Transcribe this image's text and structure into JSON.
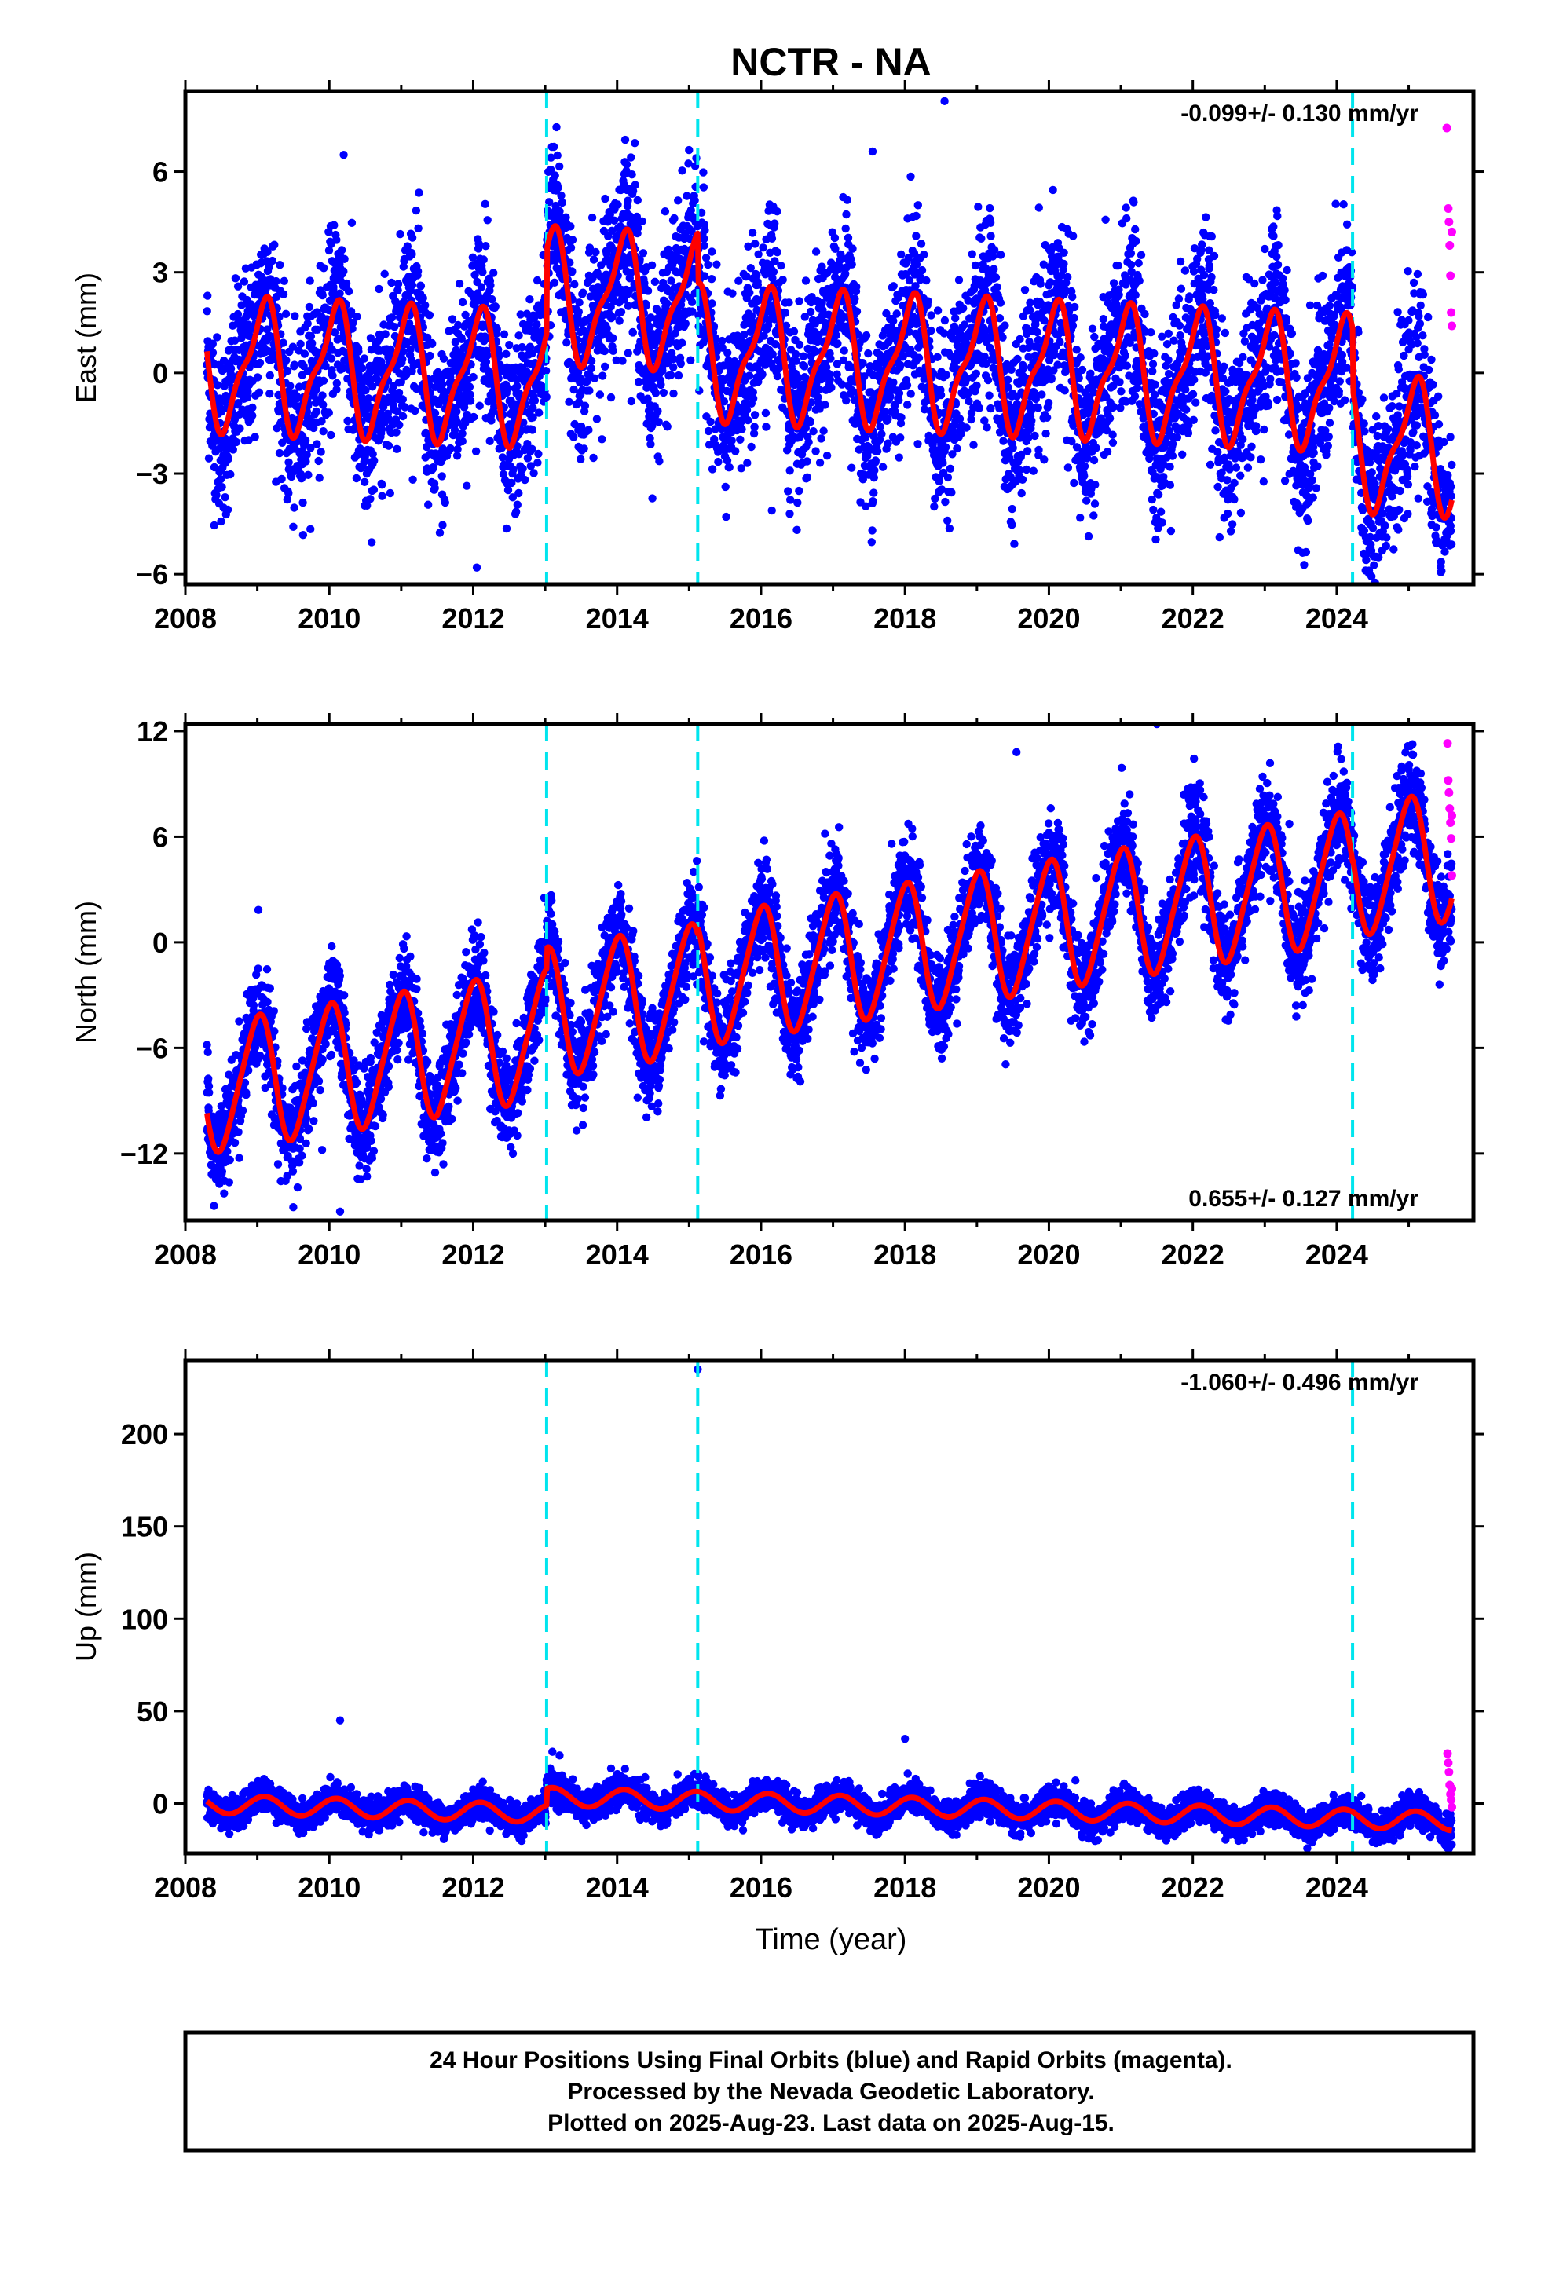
{
  "title": "NCTR - NA",
  "xlabel": "Time (year)",
  "footer": {
    "line1": "24 Hour Positions Using Final Orbits (blue) and Rapid Orbits (magenta).",
    "line2": "Processed by the Nevada Geodetic Laboratory.",
    "line3": "Plotted on 2025-Aug-23. Last data on 2025-Aug-15."
  },
  "colors": {
    "final": "#0000ff",
    "rapid": "#ff00ff",
    "model": "#ff0000",
    "steps": "#00e5ee"
  },
  "chart_data": [
    {
      "type": "scatter",
      "name": "East",
      "ylabel": "East (mm)",
      "rate": "-0.099+/- 0.130 mm/yr",
      "xlim": [
        2008,
        2025.9
      ],
      "ylim": [
        -6.3,
        8.4
      ],
      "yticks": [
        -6,
        -3,
        0,
        3,
        6
      ],
      "xticks": [
        2008,
        2010,
        2012,
        2014,
        2016,
        2018,
        2020,
        2022,
        2024
      ],
      "steps": [
        2013.02,
        2015.12,
        2024.22
      ],
      "model": {
        "offset": 0.3,
        "trend": -0.099,
        "annual": 1.8,
        "phase": 0.57,
        "semi": 0.6,
        "jumps": [
          {
            "t": 2013.02,
            "d": 2.5
          },
          {
            "t": 2015.12,
            "d": -1.5
          },
          {
            "t": 2024.22,
            "d": -1.8
          }
        ]
      },
      "scatter_sd": 1.3,
      "outliers": [
        {
          "x": 2010.2,
          "y": 6.5
        },
        {
          "x": 2012.05,
          "y": -5.8
        },
        {
          "x": 2015.1,
          "y": 6.4
        },
        {
          "x": 2018.55,
          "y": 8.1
        },
        {
          "x": 2016.15,
          "y": -4.1
        },
        {
          "x": 2017.55,
          "y": 6.6
        }
      ],
      "rapid": [
        {
          "x": 2025.53,
          "y": 7.3
        },
        {
          "x": 2025.55,
          "y": 4.9
        },
        {
          "x": 2025.56,
          "y": 4.5
        },
        {
          "x": 2025.57,
          "y": 3.8
        },
        {
          "x": 2025.58,
          "y": 2.9
        },
        {
          "x": 2025.59,
          "y": 1.8
        },
        {
          "x": 2025.6,
          "y": 1.4
        },
        {
          "x": 2025.6,
          "y": 4.2
        }
      ]
    },
    {
      "type": "scatter",
      "name": "North",
      "ylabel": "North (mm)",
      "rate": "0.655+/- 0.127 mm/yr",
      "xlim": [
        2008,
        2025.9
      ],
      "ylim": [
        -15.8,
        12.4
      ],
      "yticks": [
        -12,
        -6,
        0,
        6,
        12
      ],
      "xticks": [
        2008,
        2010,
        2012,
        2014,
        2016,
        2018,
        2020,
        2022,
        2024
      ],
      "steps": [
        2013.02,
        2015.12,
        2024.22
      ],
      "model": {
        "offset": -8.5,
        "trend": 0.655,
        "annual": 3.6,
        "phase": 0.5,
        "semi": 0.5,
        "jumps": [
          {
            "t": 2013.02,
            "d": 1.2
          },
          {
            "t": 2015.12,
            "d": 0.4
          },
          {
            "t": 2024.22,
            "d": 0.3
          }
        ]
      },
      "scatter_sd": 1.4,
      "outliers": [
        {
          "x": 2010.15,
          "y": -15.3
        },
        {
          "x": 2021.5,
          "y": 12.4
        },
        {
          "x": 2009.9,
          "y": -11.8
        },
        {
          "x": 2019.55,
          "y": 10.8
        }
      ],
      "rapid": [
        {
          "x": 2025.54,
          "y": 11.3
        },
        {
          "x": 2025.55,
          "y": 9.2
        },
        {
          "x": 2025.56,
          "y": 8.5
        },
        {
          "x": 2025.57,
          "y": 7.6
        },
        {
          "x": 2025.58,
          "y": 6.8
        },
        {
          "x": 2025.59,
          "y": 5.9
        },
        {
          "x": 2025.6,
          "y": 3.8
        },
        {
          "x": 2025.6,
          "y": 7.2
        }
      ]
    },
    {
      "type": "scatter",
      "name": "Up",
      "ylabel": "Up (mm)",
      "rate": "-1.060+/- 0.496 mm/yr",
      "xlim": [
        2008,
        2025.9
      ],
      "ylim": [
        -27,
        240
      ],
      "yticks": [
        0,
        50,
        100,
        150,
        200
      ],
      "xticks": [
        2008,
        2010,
        2012,
        2014,
        2016,
        2018,
        2020,
        2022,
        2024
      ],
      "steps": [
        2013.02,
        2015.12,
        2024.22
      ],
      "model": {
        "offset": 0.0,
        "trend": -1.06,
        "annual": 5.0,
        "phase": 0.6,
        "semi": 0.0,
        "jumps": [
          {
            "t": 2013.02,
            "d": 9.0
          },
          {
            "t": 2015.12,
            "d": 0.0
          },
          {
            "t": 2024.22,
            "d": 0.0
          }
        ]
      },
      "scatter_sd": 4.0,
      "outliers": [
        {
          "x": 2015.12,
          "y": 235
        },
        {
          "x": 2010.15,
          "y": 45
        },
        {
          "x": 2018.0,
          "y": 35
        },
        {
          "x": 2013.1,
          "y": 28
        },
        {
          "x": 2013.2,
          "y": 26
        }
      ],
      "rapid": [
        {
          "x": 2025.54,
          "y": 27
        },
        {
          "x": 2025.55,
          "y": 22
        },
        {
          "x": 2025.56,
          "y": 17
        },
        {
          "x": 2025.57,
          "y": 10
        },
        {
          "x": 2025.58,
          "y": 5
        },
        {
          "x": 2025.59,
          "y": 2
        },
        {
          "x": 2025.6,
          "y": -2
        },
        {
          "x": 2025.6,
          "y": 8
        }
      ]
    }
  ]
}
